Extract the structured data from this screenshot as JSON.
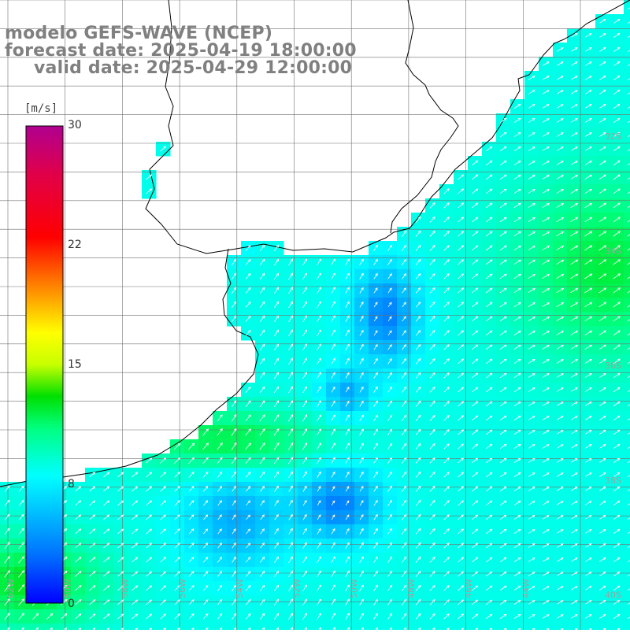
{
  "titles": {
    "line1": "modelo GEFS-WAVE (NCEP)",
    "line2": "forecast date: 2025-04-19 18:00:00",
    "line3": "valid date: 2025-04-29 12:00:00"
  },
  "colorbar": {
    "unit": "[m/s]",
    "min": 0,
    "max": 30,
    "ticks": [
      "30",
      "22",
      "15",
      "8",
      "0"
    ],
    "tick_values": [
      30,
      22,
      15,
      8,
      0
    ],
    "stops": [
      {
        "v": 0,
        "c": "#0000ff"
      },
      {
        "v": 3,
        "c": "#0070ff"
      },
      {
        "v": 6,
        "c": "#00c8ff"
      },
      {
        "v": 8,
        "c": "#00ffff"
      },
      {
        "v": 11,
        "c": "#00ff80"
      },
      {
        "v": 13,
        "c": "#00e000"
      },
      {
        "v": 15,
        "c": "#c8ff00"
      },
      {
        "v": 17,
        "c": "#ffff00"
      },
      {
        "v": 20,
        "c": "#ff8000"
      },
      {
        "v": 23,
        "c": "#ff0000"
      },
      {
        "v": 27,
        "c": "#e0004a"
      },
      {
        "v": 30,
        "c": "#b00090"
      }
    ]
  },
  "map": {
    "lon_labels": [
      "62W",
      "60W",
      "58W",
      "56W",
      "54W",
      "52W",
      "50W",
      "48W",
      "46W",
      "44W"
    ],
    "lat_labels": [
      "32S",
      "34S",
      "36S",
      "38S",
      "40S"
    ],
    "colors": {
      "land": "#ffffff",
      "grid": "#707070",
      "coast": "#000000",
      "arrow": "#ffffff",
      "label": "#a0a0a0"
    }
  }
}
